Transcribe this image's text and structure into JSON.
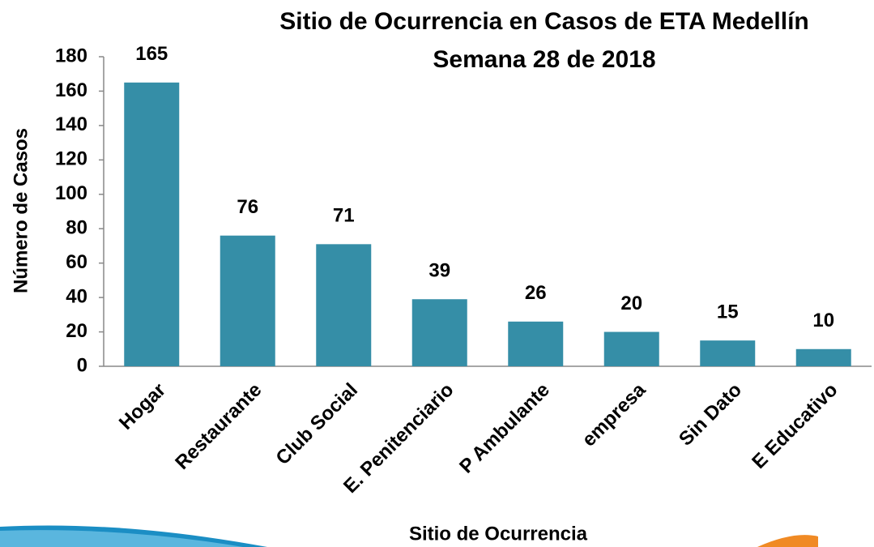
{
  "chart_data": {
    "type": "bar",
    "title": "Sitio de Ocurrencia en Casos de ETA Medellín",
    "subtitle": "Semana 28 de 2018",
    "x_label": "Sitio de Ocurrencia",
    "y_label": "Número de Casos",
    "categories": [
      "Hogar",
      "Restaurante",
      "Club Social",
      "E. Penitenciario",
      "P Ambulante",
      "empresa",
      "Sin Dato",
      "E Educativo"
    ],
    "values": [
      165,
      76,
      71,
      39,
      26,
      20,
      15,
      10
    ],
    "color": "#358ea7",
    "ylim": [
      0,
      180
    ],
    "yticks": [
      0,
      20,
      40,
      60,
      80,
      100,
      120,
      140,
      160,
      180
    ],
    "grid": false
  }
}
